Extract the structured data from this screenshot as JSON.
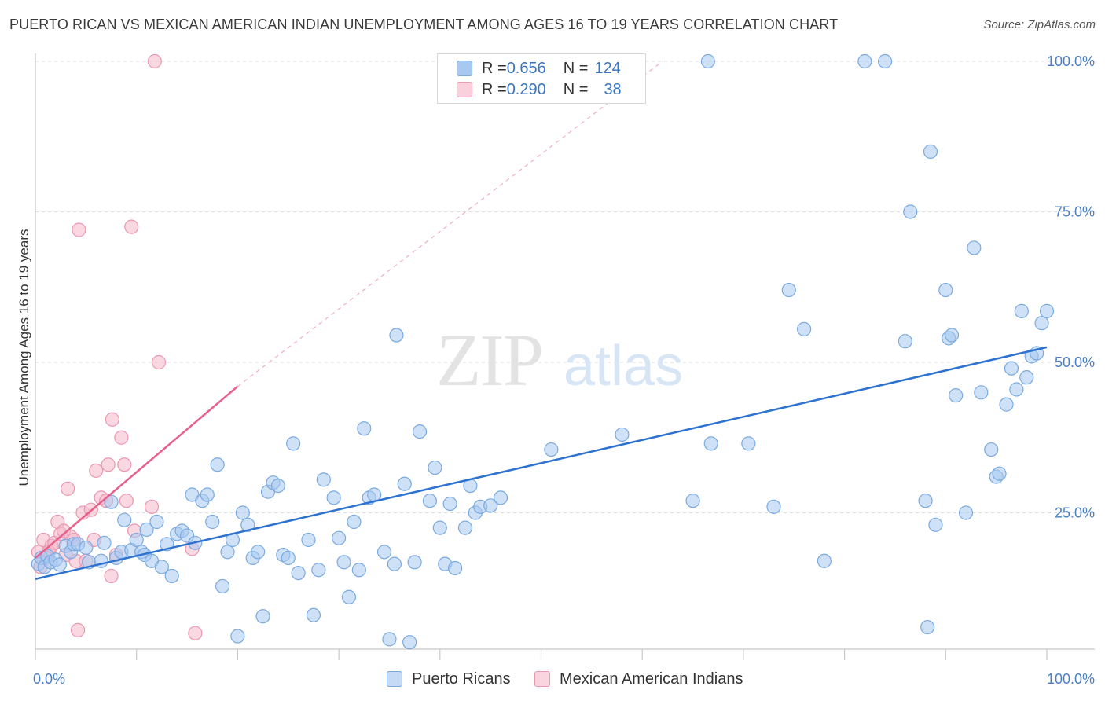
{
  "header": {
    "title": "PUERTO RICAN VS MEXICAN AMERICAN INDIAN UNEMPLOYMENT AMONG AGES 16 TO 19 YEARS CORRELATION CHART",
    "source": "Source: ZipAtlas.com"
  },
  "watermark": {
    "zip": "ZIP",
    "atlas": "atlas"
  },
  "legend": {
    "rows": [
      {
        "r_label": "R = ",
        "r_value": "0.656",
        "n_label": "N = ",
        "n_value": "124",
        "color": "#a8c8f0"
      },
      {
        "r_label": "R = ",
        "r_value": "0.290",
        "n_label": "N = ",
        "n_value": "38",
        "color": "#f4b8ca"
      }
    ]
  },
  "bottom_legend": {
    "series1": "Puerto Ricans",
    "series2": "Mexican American Indians"
  },
  "chart_data": {
    "type": "scatter",
    "title": "PUERTO RICAN VS MEXICAN AMERICAN INDIAN UNEMPLOYMENT AMONG AGES 16 TO 19 YEARS CORRELATION CHART",
    "xlabel": "",
    "ylabel": "Unemployment Among Ages 16 to 19 years",
    "xlim": [
      0,
      100
    ],
    "ylim": [
      0,
      100
    ],
    "x_tick_labels": [
      "0.0%",
      "100.0%"
    ],
    "y_tick_labels": [
      "25.0%",
      "50.0%",
      "75.0%",
      "100.0%"
    ],
    "y_ticks": [
      25,
      50,
      75,
      100
    ],
    "grid": true,
    "legend_position": "top-center",
    "colors": {
      "blue_fill": "#a8c8f0",
      "blue_stroke": "#7aaae0",
      "blue_line": "#2e72d0",
      "pink_fill": "#f4b8ca",
      "pink_stroke": "#ea98b2",
      "pink_line": "#e8608c"
    },
    "series": [
      {
        "name": "Puerto Ricans",
        "color": "#a8c8f0",
        "r": 0.656,
        "n": 124,
        "trend": {
          "x": [
            0,
            100
          ],
          "y": [
            14.0,
            52.5
          ]
        },
        "points": [
          [
            0.3,
            16.5
          ],
          [
            0.6,
            17.5
          ],
          [
            0.9,
            16.0
          ],
          [
            1.2,
            17.8
          ],
          [
            1.5,
            16.8
          ],
          [
            2.0,
            17.2
          ],
          [
            2.4,
            16.4
          ],
          [
            3.0,
            19.5
          ],
          [
            3.5,
            18.5
          ],
          [
            3.8,
            19.8
          ],
          [
            4.2,
            19.8
          ],
          [
            5.0,
            19.2
          ],
          [
            5.3,
            16.8
          ],
          [
            6.5,
            17.0
          ],
          [
            6.8,
            20.0
          ],
          [
            7.5,
            26.8
          ],
          [
            8.0,
            17.5
          ],
          [
            8.5,
            18.5
          ],
          [
            8.8,
            23.8
          ],
          [
            9.5,
            18.8
          ],
          [
            10.0,
            20.5
          ],
          [
            10.5,
            18.5
          ],
          [
            10.8,
            18.0
          ],
          [
            11.0,
            22.2
          ],
          [
            11.5,
            17.0
          ],
          [
            12.0,
            23.5
          ],
          [
            12.5,
            16.0
          ],
          [
            13.0,
            19.8
          ],
          [
            13.5,
            14.5
          ],
          [
            14.0,
            21.5
          ],
          [
            14.5,
            22.0
          ],
          [
            15.0,
            21.2
          ],
          [
            15.5,
            28.0
          ],
          [
            15.8,
            20.0
          ],
          [
            16.5,
            27.0
          ],
          [
            17.0,
            28.0
          ],
          [
            17.5,
            23.5
          ],
          [
            18.0,
            33.0
          ],
          [
            18.5,
            12.8
          ],
          [
            19.0,
            18.5
          ],
          [
            19.5,
            20.5
          ],
          [
            20.0,
            4.5
          ],
          [
            20.5,
            25.0
          ],
          [
            21.0,
            23.0
          ],
          [
            21.5,
            17.5
          ],
          [
            22.0,
            18.5
          ],
          [
            22.5,
            7.8
          ],
          [
            23.0,
            28.5
          ],
          [
            23.5,
            30.0
          ],
          [
            24.0,
            29.5
          ],
          [
            24.5,
            18.0
          ],
          [
            25.0,
            17.5
          ],
          [
            25.5,
            36.5
          ],
          [
            26.0,
            15.0
          ],
          [
            27.0,
            20.5
          ],
          [
            27.5,
            8.0
          ],
          [
            28.0,
            15.5
          ],
          [
            28.5,
            30.5
          ],
          [
            29.5,
            27.5
          ],
          [
            30.0,
            20.8
          ],
          [
            30.5,
            16.8
          ],
          [
            31.0,
            11.0
          ],
          [
            31.5,
            23.5
          ],
          [
            32.0,
            15.5
          ],
          [
            32.5,
            39.0
          ],
          [
            33.0,
            27.5
          ],
          [
            33.5,
            28.0
          ],
          [
            34.5,
            18.5
          ],
          [
            35.0,
            4.0
          ],
          [
            35.5,
            16.5
          ],
          [
            35.7,
            54.5
          ],
          [
            36.5,
            29.8
          ],
          [
            37.0,
            3.5
          ],
          [
            37.5,
            16.8
          ],
          [
            38.0,
            38.5
          ],
          [
            39.0,
            27.0
          ],
          [
            39.5,
            32.5
          ],
          [
            40.0,
            22.5
          ],
          [
            40.5,
            16.5
          ],
          [
            41.0,
            26.5
          ],
          [
            41.5,
            15.8
          ],
          [
            42.5,
            22.5
          ],
          [
            43.0,
            29.5
          ],
          [
            43.5,
            25.0
          ],
          [
            44.0,
            26.0
          ],
          [
            45.0,
            26.2
          ],
          [
            46.0,
            27.5
          ],
          [
            51.0,
            35.5
          ],
          [
            58.0,
            38.0
          ],
          [
            65.0,
            27.0
          ],
          [
            66.5,
            100
          ],
          [
            66.8,
            36.5
          ],
          [
            70.5,
            36.5
          ],
          [
            73.0,
            26.0
          ],
          [
            74.5,
            62.0
          ],
          [
            76.0,
            55.5
          ],
          [
            78.0,
            17.0
          ],
          [
            82.0,
            100
          ],
          [
            84.0,
            100
          ],
          [
            86.0,
            53.5
          ],
          [
            86.5,
            75.0
          ],
          [
            88.0,
            27.0
          ],
          [
            88.5,
            85.0
          ],
          [
            88.2,
            6.0
          ],
          [
            89.0,
            23.0
          ],
          [
            90.0,
            62.0
          ],
          [
            90.3,
            54.0
          ],
          [
            90.6,
            54.5
          ],
          [
            91.0,
            44.5
          ],
          [
            92.0,
            25.0
          ],
          [
            92.8,
            69.0
          ],
          [
            93.5,
            45.0
          ],
          [
            94.5,
            35.5
          ],
          [
            95.0,
            31.0
          ],
          [
            95.3,
            31.5
          ],
          [
            96.0,
            43.0
          ],
          [
            96.5,
            49.0
          ],
          [
            97.0,
            45.5
          ],
          [
            97.5,
            58.5
          ],
          [
            98.0,
            47.5
          ],
          [
            98.5,
            51.0
          ],
          [
            99.0,
            51.5
          ],
          [
            99.5,
            56.5
          ],
          [
            100.0,
            58.5
          ]
        ]
      },
      {
        "name": "Mexican American Indians",
        "color": "#f4b8ca",
        "r": 0.29,
        "n": 38,
        "trend": {
          "x": [
            0,
            20
          ],
          "y": [
            17.5,
            46.0
          ],
          "dashed_extension": {
            "x": [
              20,
              62
            ],
            "y": [
              46.0,
              100.0
            ]
          }
        },
        "points": [
          [
            0.3,
            18.5
          ],
          [
            0.5,
            16.0
          ],
          [
            0.8,
            20.5
          ],
          [
            1.0,
            17.5
          ],
          [
            1.3,
            18.5
          ],
          [
            1.6,
            19.5
          ],
          [
            1.9,
            20.0
          ],
          [
            2.2,
            23.5
          ],
          [
            2.5,
            21.5
          ],
          [
            2.8,
            22.0
          ],
          [
            3.0,
            18.0
          ],
          [
            3.2,
            29.0
          ],
          [
            3.5,
            21.0
          ],
          [
            3.8,
            20.5
          ],
          [
            4.0,
            17.0
          ],
          [
            4.2,
            5.5
          ],
          [
            4.3,
            72.0
          ],
          [
            4.7,
            25.0
          ],
          [
            5.0,
            17.0
          ],
          [
            5.5,
            25.5
          ],
          [
            5.8,
            20.5
          ],
          [
            6.0,
            32.0
          ],
          [
            6.5,
            27.5
          ],
          [
            7.0,
            27.0
          ],
          [
            7.2,
            33.0
          ],
          [
            7.5,
            14.5
          ],
          [
            7.6,
            40.5
          ],
          [
            8.0,
            18.0
          ],
          [
            8.5,
            37.5
          ],
          [
            8.8,
            33.0
          ],
          [
            9.0,
            27.0
          ],
          [
            9.5,
            72.5
          ],
          [
            9.8,
            22.0
          ],
          [
            11.5,
            26.0
          ],
          [
            11.8,
            100
          ],
          [
            12.2,
            50.0
          ],
          [
            15.8,
            5.0
          ],
          [
            15.5,
            19.0
          ]
        ]
      }
    ]
  }
}
